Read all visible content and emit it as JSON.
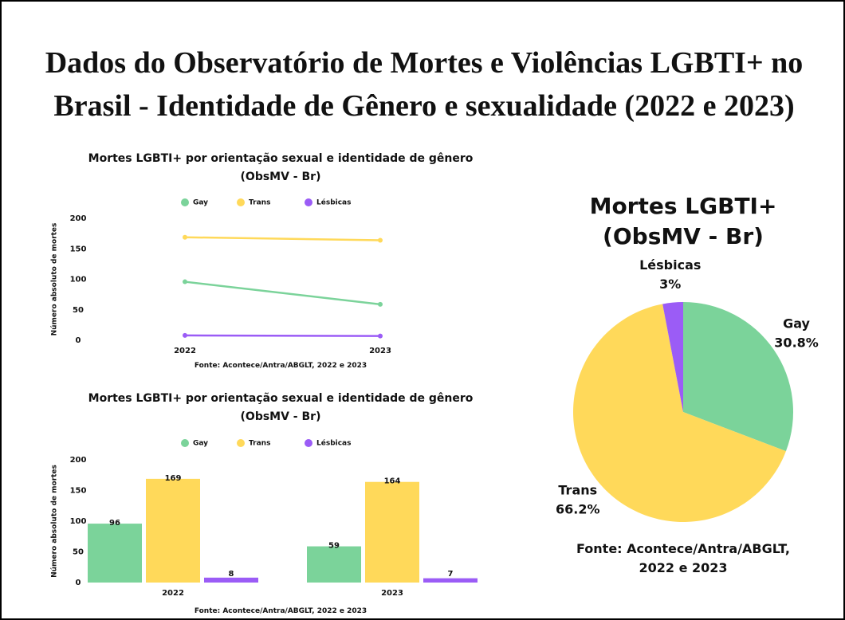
{
  "title": "Dados do Observatório de Mortes e Violências LGBTI+ no Brasil - Identidade de Gênero e sexualidade (2022 e 2023)",
  "chart_data": [
    {
      "type": "line",
      "title": "Mortes LGBTI+ por orientação sexual e identidade de gênero (ObsMV - Br)",
      "categories": [
        "2022",
        "2023"
      ],
      "series": [
        {
          "name": "Gay",
          "color": "#7bd39a",
          "values": [
            96,
            59
          ]
        },
        {
          "name": "Trans",
          "color": "#ffd95a",
          "values": [
            169,
            164
          ]
        },
        {
          "name": "Lésbicas",
          "color": "#9b5cf6",
          "values": [
            8,
            7
          ]
        }
      ],
      "ylim": [
        0,
        200
      ],
      "yticks": [
        0,
        50,
        100,
        150,
        200
      ],
      "y_label": "Número absoluto de mortes",
      "source": "Fonte: Acontece/Antra/ABGLT, 2022 e 2023"
    },
    {
      "type": "bar",
      "title": "Mortes LGBTI+ por orientação sexual e identidade de gênero (ObsMV - Br)",
      "categories": [
        "2022",
        "2023"
      ],
      "series": [
        {
          "name": "Gay",
          "color": "#7bd39a",
          "values": [
            96,
            59
          ]
        },
        {
          "name": "Trans",
          "color": "#ffd95a",
          "values": [
            169,
            164
          ]
        },
        {
          "name": "Lésbicas",
          "color": "#9b5cf6",
          "values": [
            8,
            7
          ]
        }
      ],
      "ylim": [
        0,
        200
      ],
      "yticks": [
        0,
        50,
        100,
        150,
        200
      ],
      "y_label": "Número absoluto de mortes",
      "source": "Fonte: Acontece/Antra/ABGLT, 2022 e 2023"
    },
    {
      "type": "pie",
      "title": "Mortes LGBTI+ (ObsMV - Br)",
      "categories": [
        "Gay",
        "Trans",
        "Lésbicas"
      ],
      "values": [
        30.8,
        66.2,
        3
      ],
      "value_labels": [
        "30.8%",
        "66.2%",
        "3%"
      ],
      "colors": [
        "#7bd39a",
        "#ffd95a",
        "#9b5cf6"
      ],
      "source": "Fonte: Acontece/Antra/ABGLT, 2022 e 2023"
    }
  ]
}
